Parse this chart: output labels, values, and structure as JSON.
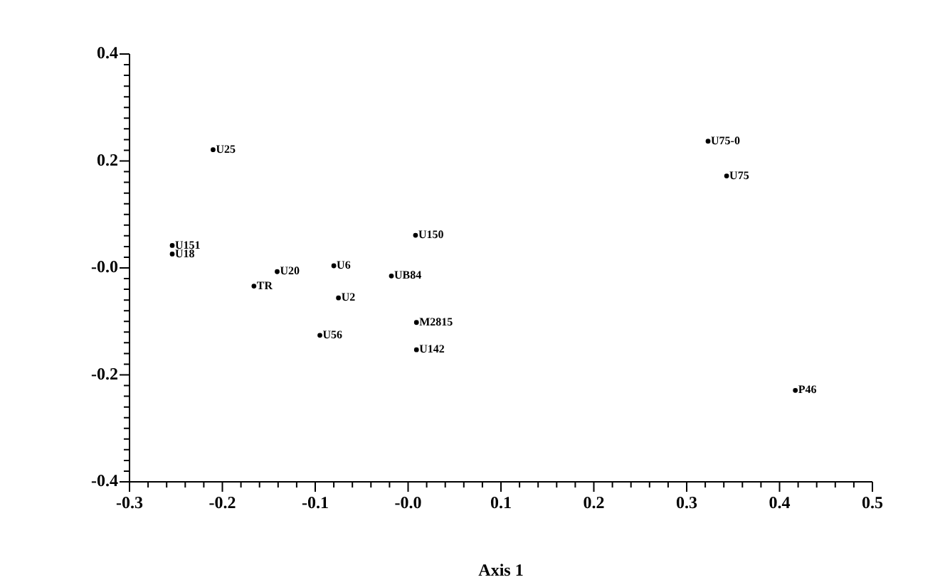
{
  "chart_data": {
    "type": "scatter",
    "xlabel": "Axis 1",
    "marker": "circle",
    "grid": false,
    "xlim": [
      -0.3,
      0.5
    ],
    "ylim": [
      -0.4,
      0.4
    ],
    "xticks": [
      -0.3,
      {
        "value": -0.28,
        "label": null
      },
      {
        "value": -0.26,
        "label": null
      },
      {
        "value": -0.24,
        "label": null
      },
      {
        "value": -0.22,
        "label": null
      },
      -0.2,
      {
        "value": -0.18,
        "label": null
      },
      {
        "value": -0.16,
        "label": null
      },
      {
        "value": -0.14,
        "label": null
      },
      {
        "value": -0.12,
        "label": null
      },
      -0.1,
      {
        "value": -0.08,
        "label": null
      },
      {
        "value": -0.06,
        "label": null
      },
      {
        "value": -0.04,
        "label": null
      },
      {
        "value": -0.02,
        "label": null
      },
      {
        "value": 0,
        "label": "-0.0"
      },
      {
        "value": 0.02,
        "label": null
      },
      {
        "value": 0.04,
        "label": null
      },
      {
        "value": 0.06,
        "label": null
      },
      {
        "value": 0.08,
        "label": null
      },
      0.1,
      {
        "value": 0.12,
        "label": null
      },
      {
        "value": 0.14,
        "label": null
      },
      {
        "value": 0.16,
        "label": null
      },
      {
        "value": 0.18,
        "label": null
      },
      0.2,
      {
        "value": 0.22,
        "label": null
      },
      {
        "value": 0.24,
        "label": null
      },
      {
        "value": 0.26,
        "label": null
      },
      {
        "value": 0.28,
        "label": null
      },
      0.3,
      {
        "value": 0.32,
        "label": null
      },
      {
        "value": 0.34,
        "label": null
      },
      {
        "value": 0.36,
        "label": null
      },
      {
        "value": 0.38,
        "label": null
      },
      0.4,
      {
        "value": 0.42,
        "label": null
      },
      {
        "value": 0.44,
        "label": null
      },
      {
        "value": 0.46,
        "label": null
      },
      {
        "value": 0.48,
        "label": null
      },
      0.5
    ],
    "yticks": [
      -0.4,
      {
        "value": -0.38,
        "label": null
      },
      {
        "value": -0.36,
        "label": null
      },
      {
        "value": -0.34,
        "label": null
      },
      {
        "value": -0.32,
        "label": null
      },
      {
        "value": -0.3,
        "label": null
      },
      {
        "value": -0.28,
        "label": null
      },
      {
        "value": -0.26,
        "label": null
      },
      {
        "value": -0.24,
        "label": null
      },
      {
        "value": -0.22,
        "label": null
      },
      -0.2,
      {
        "value": -0.18,
        "label": null
      },
      {
        "value": -0.16,
        "label": null
      },
      {
        "value": -0.14,
        "label": null
      },
      {
        "value": -0.12,
        "label": null
      },
      {
        "value": -0.1,
        "label": null
      },
      {
        "value": -0.08,
        "label": null
      },
      {
        "value": -0.06,
        "label": null
      },
      {
        "value": -0.04,
        "label": null
      },
      {
        "value": -0.02,
        "label": null
      },
      {
        "value": 0,
        "label": "-0.0"
      },
      {
        "value": 0.02,
        "label": null
      },
      {
        "value": 0.04,
        "label": null
      },
      {
        "value": 0.06,
        "label": null
      },
      {
        "value": 0.08,
        "label": null
      },
      {
        "value": 0.1,
        "label": null
      },
      {
        "value": 0.12,
        "label": null
      },
      {
        "value": 0.14,
        "label": null
      },
      {
        "value": 0.16,
        "label": null
      },
      {
        "value": 0.18,
        "label": null
      },
      0.2,
      {
        "value": 0.22,
        "label": null
      },
      {
        "value": 0.24,
        "label": null
      },
      {
        "value": 0.26,
        "label": null
      },
      {
        "value": 0.28,
        "label": null
      },
      {
        "value": 0.3,
        "label": null
      },
      {
        "value": 0.32,
        "label": null
      },
      {
        "value": 0.34,
        "label": null
      },
      {
        "value": 0.36,
        "label": null
      },
      {
        "value": 0.38,
        "label": null
      },
      0.4
    ],
    "series": [
      {
        "color": "#000000",
        "x": [
          -0.21,
          -0.254,
          -0.254,
          -0.141,
          -0.166,
          -0.08,
          -0.075,
          -0.095,
          -0.018,
          0.008,
          0.009,
          0.009,
          0.323,
          0.343,
          0.417
        ],
        "value_labels": [
          "U25",
          "U151",
          "U18",
          "U20",
          "TR",
          "U6",
          "U2",
          "U56",
          "UB84",
          "U150",
          "M2815",
          "U142",
          "U75-0",
          "U75",
          "P46"
        ],
        "values": [
          0.221,
          0.042,
          0.026,
          -0.007,
          -0.034,
          0.004,
          -0.056,
          -0.126,
          -0.015,
          0.061,
          -0.102,
          -0.153,
          0.237,
          0.172,
          -0.229
        ]
      }
    ]
  }
}
